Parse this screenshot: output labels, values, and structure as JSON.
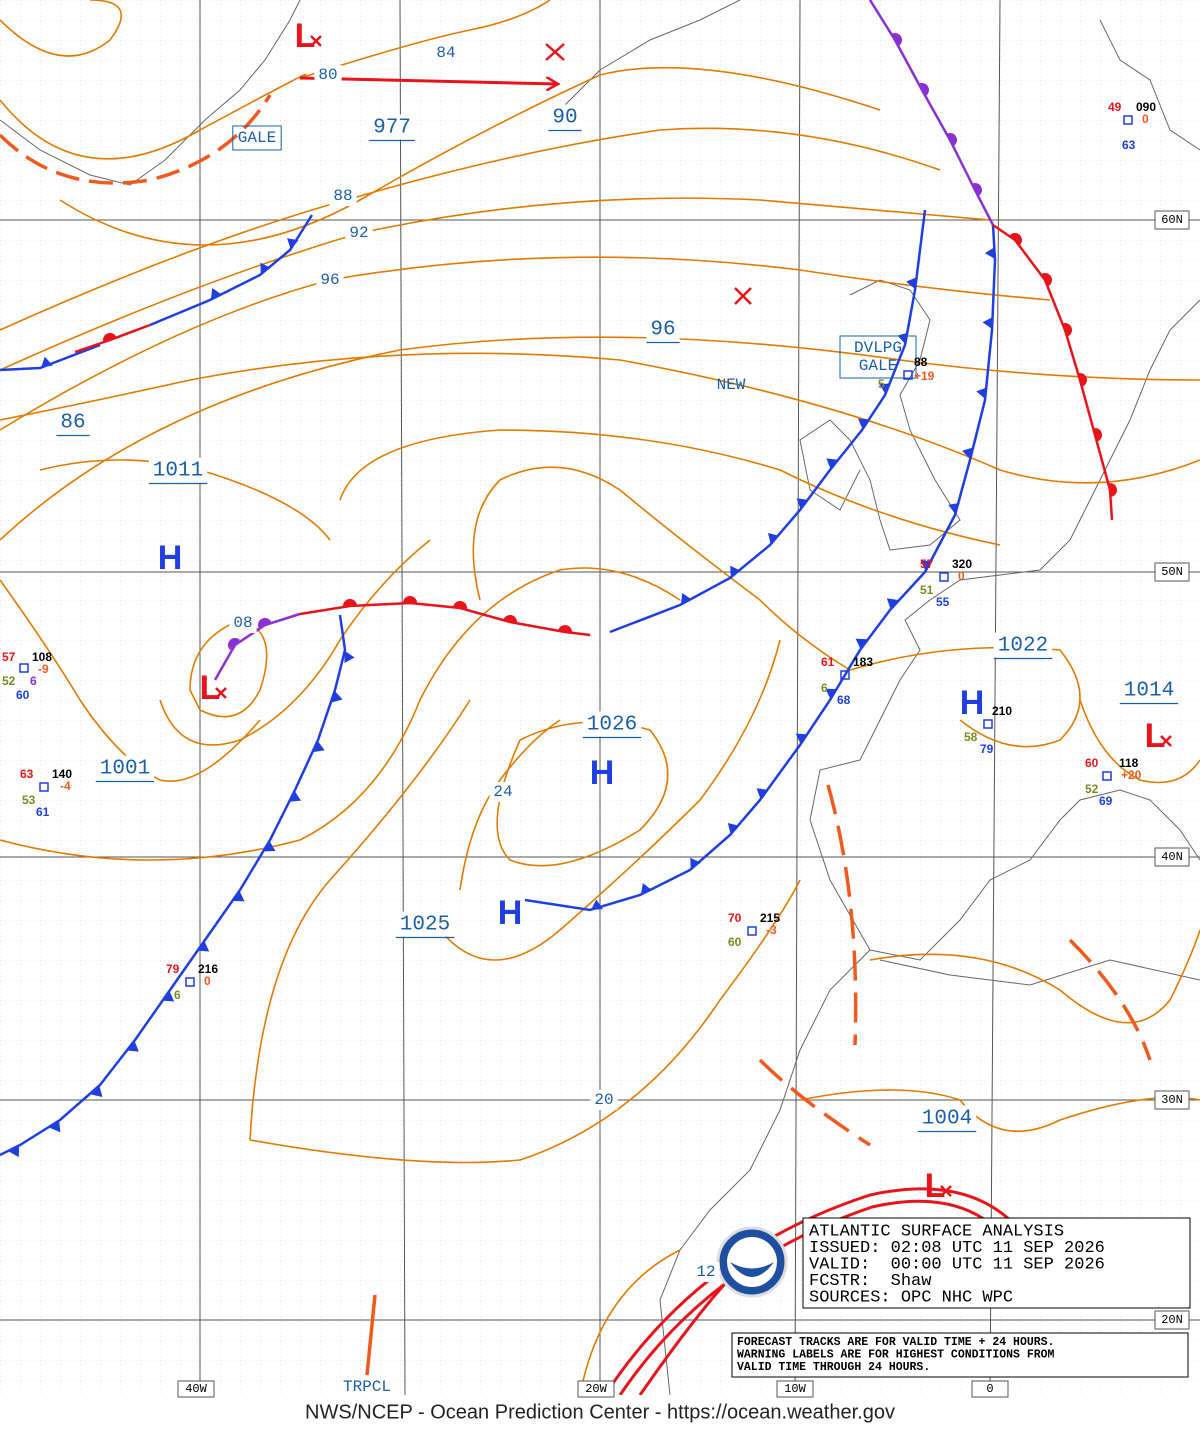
{
  "isobar_labels": [
    "80",
    "84",
    "977",
    "90",
    "88",
    "92",
    "96",
    "96",
    "86",
    "1011",
    "08",
    "1001",
    "1026",
    "24",
    "1025",
    "20",
    "1022",
    "1014",
    "1004",
    "12"
  ],
  "pressure_centers": [
    "H",
    "H",
    "H",
    "H",
    "L",
    "L",
    "L",
    "L"
  ],
  "warning_labels": [
    "GALE",
    "DVLPG",
    "GALE",
    "NEW"
  ],
  "stations": [
    [
      "57",
      "108",
      "-9",
      "52",
      "6",
      "60"
    ],
    [
      "63",
      "140",
      "-4",
      "53",
      "61"
    ],
    [
      "49",
      "090",
      "0",
      "63"
    ],
    [
      "88",
      "+19",
      "5"
    ],
    [
      "57",
      "320",
      "0",
      "51",
      "55"
    ],
    [
      "61",
      "183",
      "6",
      "68"
    ],
    [
      "210",
      "58",
      "79"
    ],
    [
      "60",
      "118",
      "+20",
      "52",
      "69"
    ],
    [
      "70",
      "215",
      "-3",
      "60"
    ],
    [
      "79",
      "216",
      "0",
      "6"
    ]
  ],
  "lat_labels": [
    "60N",
    "50N",
    "40N",
    "30N",
    "20N"
  ],
  "lon_labels": [
    "40W",
    "20W",
    "10W",
    "0"
  ],
  "trpcl_label": "TRPCL",
  "info_box": [
    "ATLANTIC SURFACE ANALYSIS",
    "ISSUED: 02:08 UTC 11 SEP 2026",
    "VALID:  00:00 UTC 11 SEP 2026",
    "FCSTR:  Shaw",
    "SOURCES: OPC NHC WPC"
  ],
  "note": [
    "FORECAST TRACKS ARE FOR VALID TIME + 24 HOURS.",
    "WARNING LABELS ARE FOR HIGHEST CONDITIONS FROM",
    "VALID TIME THROUGH 24 HOURS."
  ],
  "footer": "NWS/NCEP - Ocean Prediction Center - https://ocean.weather.gov"
}
